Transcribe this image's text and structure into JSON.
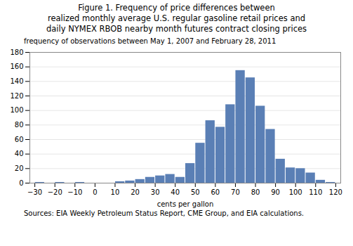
{
  "chart_data": {
    "type": "bar",
    "title": "Figure 1. Frequency of price differences between\nrealized monthly average U.S. regular gasoline retail prices and\ndaily NYMEX RBOB nearby month futures contract closing prices",
    "subtitle": "frequency of observations between May 1, 2007 and February 28, 2011",
    "source": "Sources: EIA Weekly Petroleum Status Report, CME Group, and EIA calculations.",
    "xlabel": "cents per gallon",
    "color": "#5a7fb5",
    "x": [
      -27.5,
      -22.5,
      -17.5,
      -12.5,
      -7.5,
      -2.5,
      2.5,
      7.5,
      12.5,
      17.5,
      22.5,
      27.5,
      32.5,
      37.5,
      42.5,
      47.5,
      52.5,
      57.5,
      62.5,
      67.5,
      72.5,
      77.5,
      82.5,
      87.5,
      92.5,
      97.5,
      102.5,
      107.5,
      112.5,
      117.5
    ],
    "values": [
      1,
      0,
      1,
      0,
      1,
      0,
      0,
      0,
      2,
      3,
      5,
      8,
      10,
      12,
      8,
      27,
      55,
      86,
      77,
      108,
      155,
      145,
      106,
      74,
      33,
      21,
      20,
      14,
      4,
      1
    ],
    "xlim": [
      -32.5,
      122.5
    ],
    "ylim": [
      0,
      180
    ],
    "xticks": [
      -30,
      -20,
      -10,
      0,
      10,
      20,
      30,
      40,
      50,
      60,
      70,
      80,
      90,
      100,
      110,
      120
    ],
    "yticks": [
      0,
      20,
      40,
      60,
      80,
      100,
      120,
      140,
      160,
      180
    ],
    "grid": true
  }
}
